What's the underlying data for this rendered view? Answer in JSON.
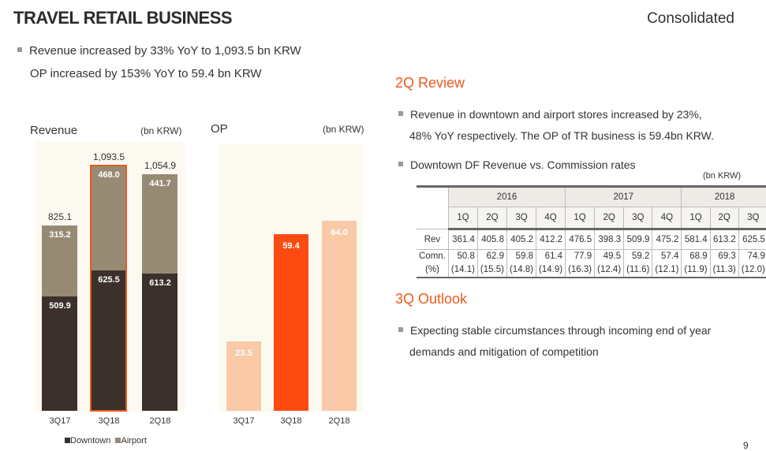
{
  "header": {
    "title": "TRAVEL RETAIL BUSINESS",
    "scope": "Consolidated",
    "page": "9"
  },
  "summary": [
    "Revenue increased by 33% YoY to 1,093.5 bn KRW",
    "OP increased by 153% YoY to 59.4 bn KRW"
  ],
  "review": {
    "title": "2Q Review",
    "bullet1_line1": "Revenue in downtown and airport stores increased by 23%,",
    "bullet1_line2": "48% YoY respectively. The OP of TR business is 59.4bn KRW.",
    "bullet2": "Downtown DF Revenue vs. Commission rates",
    "unit": "(bn KRW)"
  },
  "table": {
    "years": [
      "2016",
      "2017",
      "2018"
    ],
    "quarters": [
      "1Q",
      "2Q",
      "3Q",
      "4Q",
      "1Q",
      "2Q",
      "3Q",
      "4Q",
      "1Q",
      "2Q",
      "3Q"
    ],
    "rev_label": "Rev",
    "comn_label": "Comn.",
    "pct_label": "(%)",
    "rev": [
      "361.4",
      "405.8",
      "405.2",
      "412.2",
      "476.5",
      "398.3",
      "509.9",
      "475.2",
      "581.4",
      "613.2",
      "625.5"
    ],
    "comn": [
      "50.8",
      "62.9",
      "59.8",
      "61.4",
      "77.9",
      "49.5",
      "59.2",
      "57.4",
      "68.9",
      "69.3",
      "74.9"
    ],
    "pct": [
      "(14.1)",
      "(15.5)",
      "(14.8)",
      "(14.9)",
      "(16.3)",
      "(12.4)",
      "(11.6)",
      "(12.1)",
      "(11.9)",
      "(11.3)",
      "(12.0)"
    ]
  },
  "outlook": {
    "title": "3Q Outlook",
    "line1": "Expecting stable circumstances through incoming end of year",
    "line2": "demands and mitigation of competition"
  },
  "chart_data": [
    {
      "type": "bar",
      "stacked": true,
      "title": "Revenue",
      "unit": "(bn KRW)",
      "categories": [
        "3Q17",
        "3Q18",
        "2Q18"
      ],
      "series": [
        {
          "name": "Downtown",
          "color": "#3b302b",
          "values": [
            509.9,
            625.5,
            613.2
          ],
          "labels": [
            "509.9",
            "625.5",
            "613.2"
          ]
        },
        {
          "name": "Airport",
          "color": "#978a75",
          "values": [
            315.2,
            468.0,
            441.7
          ],
          "labels": [
            "315.2",
            "468.0",
            "441.7"
          ]
        }
      ],
      "totals": [
        "825.1",
        "1,093.5",
        "1,054.9"
      ],
      "highlight": "3Q18",
      "highlight_color": "#ea5a1c",
      "ylim": [
        0,
        1200
      ]
    },
    {
      "type": "bar",
      "title": "OP",
      "unit": "(bn KRW)",
      "categories": [
        "3Q17",
        "3Q18",
        "2Q18"
      ],
      "values": [
        23.5,
        59.4,
        64.0
      ],
      "labels": [
        "23.5",
        "59.4",
        "64.0"
      ],
      "colors": [
        "#f9c9a8",
        "#fc4b10",
        "#f9c9a8"
      ],
      "ylim": [
        0,
        90
      ]
    }
  ]
}
